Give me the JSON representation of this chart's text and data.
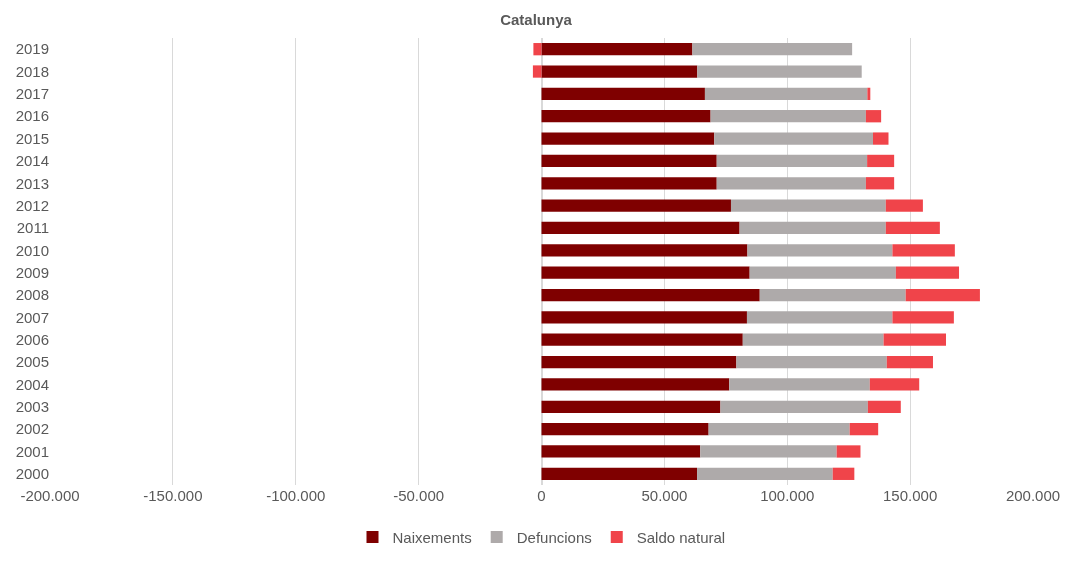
{
  "chart_data": {
    "type": "bar",
    "orientation": "horizontal",
    "stacked": true,
    "title": "Catalunya",
    "categories": [
      "2019",
      "2018",
      "2017",
      "2016",
      "2015",
      "2014",
      "2013",
      "2012",
      "2011",
      "2010",
      "2009",
      "2008",
      "2007",
      "2006",
      "2005",
      "2004",
      "2003",
      "2002",
      "2001",
      "2000"
    ],
    "series": [
      {
        "name": "Naixements",
        "color": "#7f0000",
        "values": [
          61400,
          63400,
          66500,
          68800,
          70300,
          71300,
          71300,
          77100,
          80600,
          83800,
          84700,
          88800,
          83600,
          81900,
          79300,
          76400,
          72800,
          68000,
          64600,
          63300
        ]
      },
      {
        "name": "Defuncions",
        "color": "#aeaaaa",
        "values": [
          65000,
          66900,
          66100,
          63200,
          64600,
          61200,
          60700,
          63000,
          59500,
          59000,
          59500,
          59400,
          59200,
          57300,
          61200,
          57200,
          60000,
          57400,
          55500,
          55200
        ]
      },
      {
        "name": "Saldo natural",
        "color": "#f0444a",
        "values": [
          -3300,
          -3500,
          1200,
          6200,
          6300,
          11000,
          11500,
          15100,
          22000,
          25400,
          25700,
          30200,
          25000,
          25400,
          18800,
          20100,
          13400,
          11600,
          9700,
          8800
        ]
      }
    ],
    "xlim": [
      -200000,
      200000
    ],
    "xticks": [
      {
        "value": -200000,
        "label": "-200.000"
      },
      {
        "value": -150000,
        "label": "-150.000"
      },
      {
        "value": -100000,
        "label": "-100.000"
      },
      {
        "value": -50000,
        "label": "-50.000"
      },
      0,
      {
        "value": 50000,
        "label": "50.000"
      },
      {
        "value": 100000,
        "label": "100.000"
      },
      {
        "value": 150000,
        "label": "150.000"
      },
      {
        "value": 200000,
        "label": "200.000"
      }
    ],
    "grid": "x",
    "legend": "bottom"
  }
}
